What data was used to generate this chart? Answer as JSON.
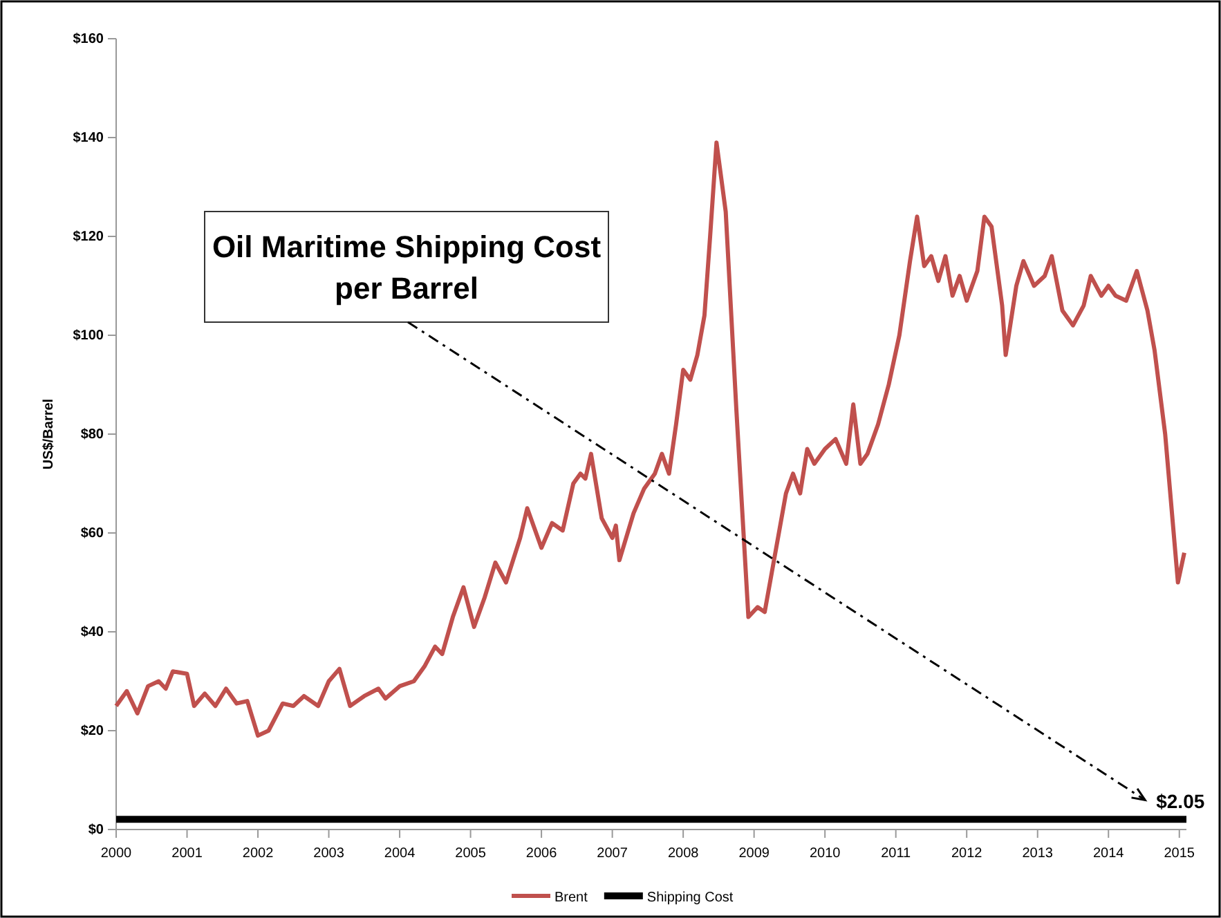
{
  "chart_data": {
    "type": "line",
    "ylabel": "US$/Barrel",
    "xlim": [
      2000,
      2015.1
    ],
    "xticks": [
      2000,
      2001,
      2002,
      2003,
      2004,
      2005,
      2006,
      2007,
      2008,
      2009,
      2010,
      2011,
      2012,
      2013,
      2014,
      2015
    ],
    "ylim": [
      0,
      160
    ],
    "yticks": [
      {
        "value": 0,
        "label": "$0"
      },
      {
        "value": 20,
        "label": "$20"
      },
      {
        "value": 40,
        "label": "$40"
      },
      {
        "value": 60,
        "label": "$60"
      },
      {
        "value": 80,
        "label": "$80"
      },
      {
        "value": 100,
        "label": "$100"
      },
      {
        "value": 120,
        "label": "$120"
      },
      {
        "value": 140,
        "label": "$140"
      },
      {
        "value": 160,
        "label": "$160"
      }
    ],
    "grid": false,
    "legend": "bottom",
    "marker": "none",
    "line_style": "solid",
    "series": [
      {
        "name": "Brent",
        "color": "#c0504d",
        "x": [
          2000.0,
          2000.15,
          2000.3,
          2000.45,
          2000.6,
          2000.7,
          2000.8,
          2001.0,
          2001.1,
          2001.25,
          2001.4,
          2001.55,
          2001.7,
          2001.85,
          2002.0,
          2002.15,
          2002.35,
          2002.5,
          2002.65,
          2002.85,
          2003.0,
          2003.15,
          2003.3,
          2003.5,
          2003.7,
          2003.8,
          2004.0,
          2004.2,
          2004.35,
          2004.5,
          2004.6,
          2004.75,
          2004.9,
          2005.05,
          2005.2,
          2005.35,
          2005.5,
          2005.7,
          2005.8,
          2006.0,
          2006.15,
          2006.3,
          2006.45,
          2006.55,
          2006.62,
          2006.7,
          2006.85,
          2007.0,
          2007.05,
          2007.1,
          2007.3,
          2007.45,
          2007.6,
          2007.7,
          2007.8,
          2007.9,
          2008.0,
          2008.1,
          2008.2,
          2008.3,
          2008.38,
          2008.47,
          2008.6,
          2008.75,
          2008.92,
          2009.05,
          2009.15,
          2009.25,
          2009.45,
          2009.55,
          2009.65,
          2009.75,
          2009.85,
          2010.0,
          2010.15,
          2010.3,
          2010.4,
          2010.5,
          2010.6,
          2010.75,
          2010.9,
          2011.05,
          2011.2,
          2011.3,
          2011.4,
          2011.5,
          2011.6,
          2011.7,
          2011.8,
          2011.9,
          2012.0,
          2012.15,
          2012.25,
          2012.35,
          2012.5,
          2012.55,
          2012.7,
          2012.8,
          2012.95,
          2013.1,
          2013.2,
          2013.35,
          2013.5,
          2013.65,
          2013.75,
          2013.9,
          2014.0,
          2014.1,
          2014.25,
          2014.4,
          2014.55,
          2014.65,
          2014.8,
          2014.98,
          2015.07
        ],
        "values": [
          25,
          28,
          23.5,
          29,
          30,
          28.5,
          32,
          31.5,
          25,
          27.5,
          25,
          28.5,
          25.5,
          26,
          19,
          20,
          25.5,
          25,
          27,
          25,
          30,
          32.5,
          25,
          27,
          28.5,
          26.5,
          29,
          30,
          33,
          37,
          35.5,
          43,
          49,
          41,
          47,
          54,
          50,
          59,
          65,
          57,
          62,
          60.5,
          70,
          72,
          71,
          76,
          63,
          59,
          61.5,
          54.5,
          64,
          69,
          72,
          76,
          72,
          82,
          93,
          91,
          96,
          104,
          120,
          139,
          125,
          85,
          43,
          45,
          44,
          52,
          68,
          72,
          68,
          77,
          74,
          77,
          79,
          74,
          86,
          74,
          76,
          82,
          90,
          100,
          115,
          124,
          114,
          116,
          111,
          116,
          108,
          112,
          107,
          113,
          124,
          122,
          106,
          96,
          110,
          115,
          110,
          112,
          116,
          105,
          102,
          106,
          112,
          108,
          110,
          108,
          107,
          113,
          105,
          97,
          80,
          50,
          56
        ]
      },
      {
        "name": "Shipping Cost",
        "color": "#000000",
        "x": [
          2000,
          2015.1
        ],
        "values": [
          2.05,
          2.05
        ]
      }
    ],
    "annotations": [
      "Oil Maritime Shipping Cost per Barrel",
      {
        "text": "$2.05",
        "x": 2014.4,
        "y": 2.05
      }
    ]
  }
}
